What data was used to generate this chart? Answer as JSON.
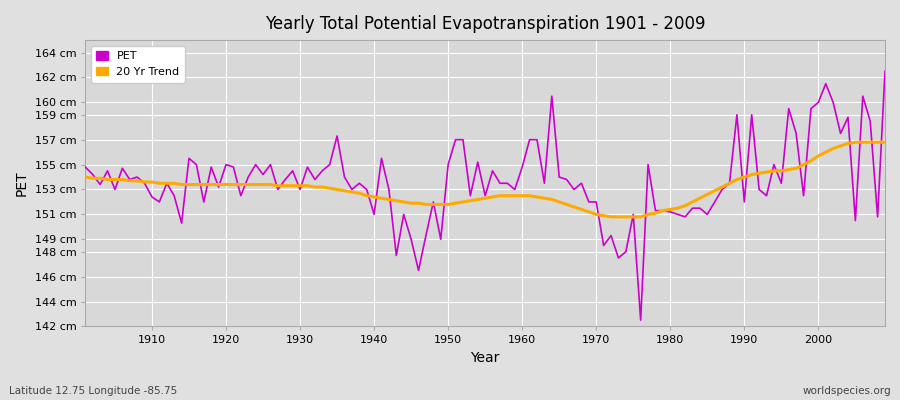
{
  "title": "Yearly Total Potential Evapotranspiration 1901 - 2009",
  "xlabel": "Year",
  "ylabel": "PET",
  "footnote_left": "Latitude 12.75 Longitude -85.75",
  "footnote_right": "worldspecies.org",
  "pet_color": "#cc00cc",
  "trend_color": "#ffaa00",
  "fig_facecolor": "#e0e0e0",
  "plot_bg_color": "#d8d8d8",
  "ylim": [
    142,
    165
  ],
  "xlim": [
    1901,
    2009
  ],
  "yticks": [
    142,
    144,
    146,
    148,
    149,
    151,
    153,
    155,
    157,
    159,
    160,
    162,
    164
  ],
  "xticks": [
    1910,
    1920,
    1930,
    1940,
    1950,
    1960,
    1970,
    1980,
    1990,
    2000
  ],
  "legend_labels": [
    "PET",
    "20 Yr Trend"
  ],
  "years": [
    1901,
    1902,
    1903,
    1904,
    1905,
    1906,
    1907,
    1908,
    1909,
    1910,
    1911,
    1912,
    1913,
    1914,
    1915,
    1916,
    1917,
    1918,
    1919,
    1920,
    1921,
    1922,
    1923,
    1924,
    1925,
    1926,
    1927,
    1928,
    1929,
    1930,
    1931,
    1932,
    1933,
    1934,
    1935,
    1936,
    1937,
    1938,
    1939,
    1940,
    1941,
    1942,
    1943,
    1944,
    1945,
    1946,
    1947,
    1948,
    1949,
    1950,
    1951,
    1952,
    1953,
    1954,
    1955,
    1956,
    1957,
    1958,
    1959,
    1960,
    1961,
    1962,
    1963,
    1964,
    1965,
    1966,
    1967,
    1968,
    1969,
    1970,
    1971,
    1972,
    1973,
    1974,
    1975,
    1976,
    1977,
    1978,
    1979,
    1980,
    1981,
    1982,
    1983,
    1984,
    1985,
    1986,
    1987,
    1988,
    1989,
    1990,
    1991,
    1992,
    1993,
    1994,
    1995,
    1996,
    1997,
    1998,
    1999,
    2000,
    2001,
    2002,
    2003,
    2004,
    2005,
    2006,
    2007,
    2008,
    2009
  ],
  "pet_values": [
    154.8,
    154.2,
    153.4,
    154.5,
    153.0,
    154.7,
    153.8,
    154.0,
    153.5,
    152.4,
    152.0,
    153.5,
    152.5,
    150.3,
    155.5,
    155.0,
    152.0,
    154.8,
    153.2,
    155.0,
    154.8,
    152.5,
    154.0,
    155.0,
    154.2,
    155.0,
    153.0,
    153.8,
    154.5,
    153.0,
    154.8,
    153.8,
    154.5,
    155.0,
    157.3,
    154.0,
    153.0,
    153.5,
    153.0,
    151.0,
    155.5,
    153.0,
    147.7,
    151.0,
    149.0,
    146.5,
    149.3,
    152.0,
    149.0,
    155.0,
    157.0,
    157.0,
    152.5,
    155.2,
    152.5,
    154.5,
    153.5,
    153.5,
    153.0,
    154.8,
    157.0,
    157.0,
    153.5,
    160.5,
    154.0,
    153.8,
    153.0,
    153.5,
    152.0,
    152.0,
    148.5,
    149.3,
    147.5,
    148.0,
    151.0,
    142.5,
    155.0,
    151.3,
    151.3,
    151.2,
    151.0,
    150.8,
    151.5,
    151.5,
    151.0,
    152.0,
    153.0,
    153.5,
    159.0,
    152.0,
    159.0,
    153.0,
    152.5,
    155.0,
    153.5,
    159.5,
    157.5,
    152.5,
    159.5,
    160.0,
    161.5,
    160.0,
    157.5,
    158.8,
    150.5,
    160.5,
    158.5,
    150.8,
    162.5
  ],
  "trend_values": [
    154.0,
    153.9,
    153.9,
    153.8,
    153.8,
    153.8,
    153.7,
    153.7,
    153.6,
    153.6,
    153.5,
    153.5,
    153.5,
    153.4,
    153.4,
    153.4,
    153.4,
    153.4,
    153.4,
    153.4,
    153.4,
    153.4,
    153.4,
    153.4,
    153.4,
    153.4,
    153.3,
    153.3,
    153.3,
    153.3,
    153.3,
    153.2,
    153.2,
    153.1,
    153.0,
    152.9,
    152.8,
    152.7,
    152.5,
    152.4,
    152.3,
    152.2,
    152.1,
    152.0,
    151.9,
    151.9,
    151.8,
    151.8,
    151.8,
    151.8,
    151.9,
    152.0,
    152.1,
    152.2,
    152.3,
    152.4,
    152.5,
    152.5,
    152.5,
    152.5,
    152.5,
    152.4,
    152.3,
    152.2,
    152.0,
    151.8,
    151.6,
    151.4,
    151.2,
    151.0,
    150.9,
    150.8,
    150.8,
    150.8,
    150.8,
    150.8,
    151.0,
    151.1,
    151.3,
    151.4,
    151.5,
    151.7,
    152.0,
    152.3,
    152.6,
    152.9,
    153.2,
    153.5,
    153.8,
    154.0,
    154.2,
    154.3,
    154.4,
    154.5,
    154.5,
    154.6,
    154.7,
    155.0,
    155.3,
    155.7,
    156.0,
    156.3,
    156.5,
    156.7,
    156.8,
    156.8,
    156.8,
    156.8,
    156.8
  ]
}
